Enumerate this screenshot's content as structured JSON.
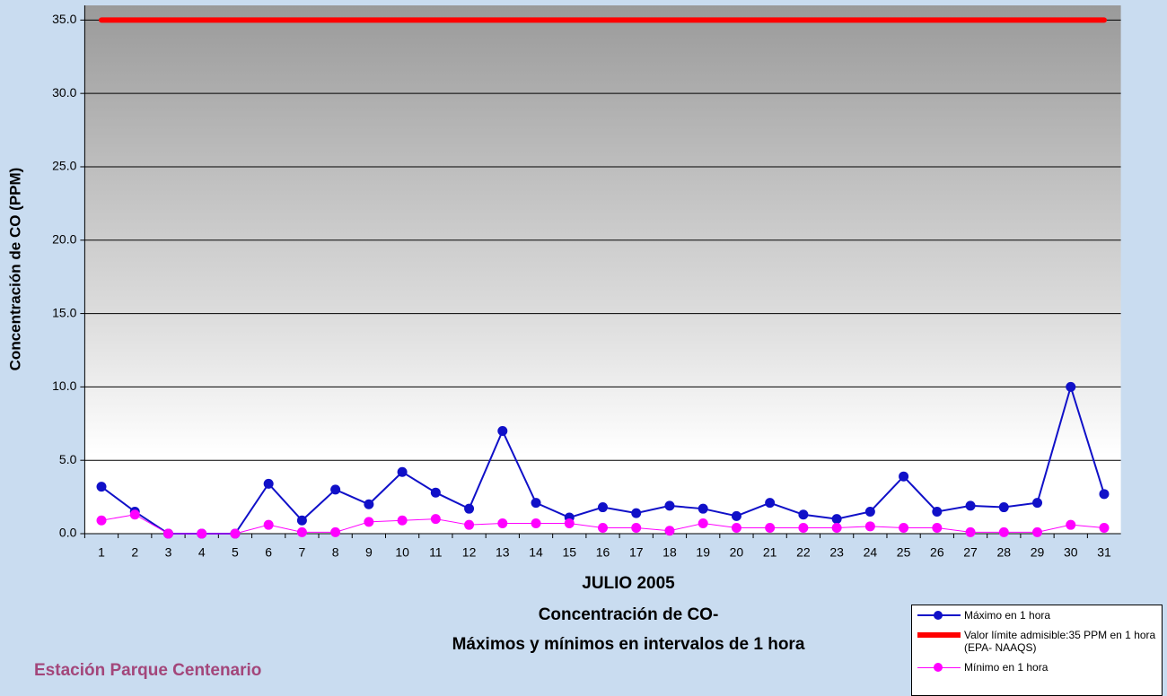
{
  "chart_data": {
    "type": "line",
    "title": "Concentración de CO-",
    "subtitle": "Máximos y mínimos en intervalos de 1 hora",
    "x_label": "JULIO 2005",
    "y_label": "Concentración de CO (PPM)",
    "station": "Estación Parque Centenario",
    "categories": [
      "1",
      "2",
      "3",
      "4",
      "5",
      "6",
      "7",
      "8",
      "9",
      "10",
      "11",
      "12",
      "13",
      "14",
      "15",
      "16",
      "17",
      "18",
      "19",
      "20",
      "21",
      "22",
      "23",
      "24",
      "25",
      "26",
      "27",
      "28",
      "29",
      "30",
      "31"
    ],
    "series": [
      {
        "name": "Máximo en 1 hora",
        "color": "#1010c8",
        "markers": true,
        "line_width": 2,
        "values": [
          3.2,
          1.5,
          0,
          0,
          0,
          3.4,
          0.9,
          3.0,
          2.0,
          4.2,
          2.8,
          1.7,
          7.0,
          2.1,
          1.1,
          1.8,
          1.4,
          1.9,
          1.7,
          1.2,
          2.1,
          1.3,
          1.0,
          1.5,
          3.9,
          1.5,
          1.9,
          1.8,
          2.1,
          10.0,
          2.7
        ]
      },
      {
        "name": "Valor límite admisible:35 PPM en 1 hora (EPA- NAAQS)",
        "color": "#ff0000",
        "markers": false,
        "line_width": 6,
        "values": [
          35,
          35,
          35,
          35,
          35,
          35,
          35,
          35,
          35,
          35,
          35,
          35,
          35,
          35,
          35,
          35,
          35,
          35,
          35,
          35,
          35,
          35,
          35,
          35,
          35,
          35,
          35,
          35,
          35,
          35,
          35
        ]
      },
      {
        "name": "Mínimo en 1 hora",
        "color": "#ff00ff",
        "markers": true,
        "line_width": 1,
        "values": [
          0.9,
          1.3,
          0,
          0,
          0,
          0.6,
          0.1,
          0.1,
          0.8,
          0.9,
          1.0,
          0.6,
          0.7,
          0.7,
          0.7,
          0.4,
          0.4,
          0.2,
          0.7,
          0.4,
          0.4,
          0.4,
          0.4,
          0.5,
          0.4,
          0.4,
          0.1,
          0.1,
          0.1,
          0.6,
          0.4
        ]
      }
    ],
    "ylim": [
      0,
      36
    ],
    "yticks": [
      {
        "value": 0,
        "label": "0.0"
      },
      {
        "value": 5,
        "label": "5.0"
      },
      {
        "value": 10,
        "label": "10.0"
      },
      {
        "value": 15,
        "label": "15.0"
      },
      {
        "value": 20,
        "label": "20.0"
      },
      {
        "value": 25,
        "label": "25.0"
      },
      {
        "value": 30,
        "label": "30.0"
      },
      {
        "value": 35,
        "label": "35.0"
      }
    ],
    "grid": true,
    "legend": "bottom-right"
  }
}
